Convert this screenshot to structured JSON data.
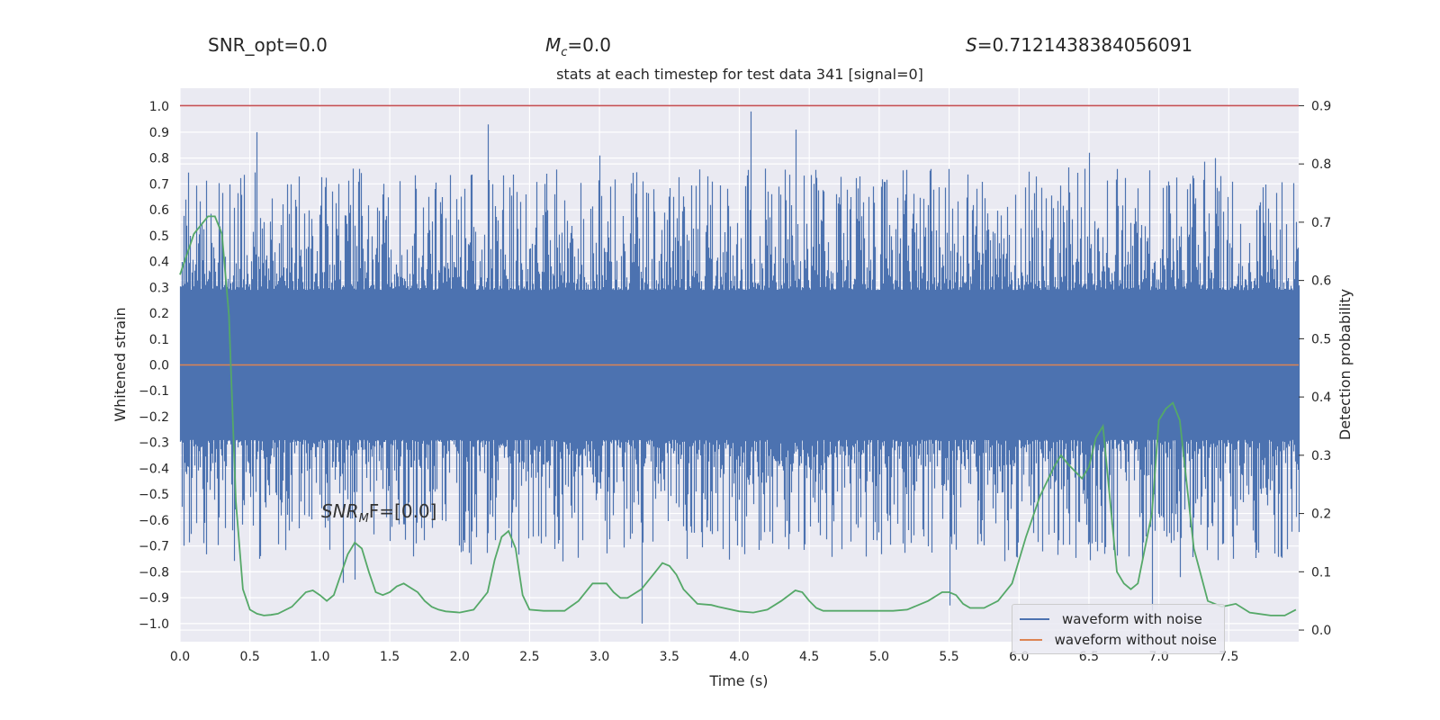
{
  "header": {
    "snr_opt": "SNR_opt=0.0",
    "mc_symbol": "M",
    "mc_sub": "c",
    "mc_value": "=0.0",
    "s_symbol": "S",
    "s_value": "=0.7121438384056091"
  },
  "annotation": {
    "snr_symbol": "SNR",
    "snr_sub": "M",
    "snr_rest": "F=[0.0]"
  },
  "colors": {
    "plot_bg": "#eaeaf2",
    "grid": "#ffffff",
    "noise": "#4c72b0",
    "clean": "#dd8452",
    "prob": "#55a868",
    "threshold": "#c44e52"
  },
  "chart_data": {
    "type": "line",
    "title": "stats at each timestep for test data 341 [signal=0]",
    "xlabel": "Time (s)",
    "ylabel": "Whitened strain",
    "y2label": "Detection probability",
    "xlim": [
      0.0,
      8.0
    ],
    "ylim": [
      -1.07,
      1.07
    ],
    "y2lim": [
      -0.02,
      0.93
    ],
    "x_ticks": [
      "0.0",
      "0.5",
      "1.0",
      "1.5",
      "2.0",
      "2.5",
      "3.0",
      "3.5",
      "4.0",
      "4.5",
      "5.0",
      "5.5",
      "6.0",
      "6.5",
      "7.0",
      "7.5"
    ],
    "y_ticks": [
      "1.0",
      "0.9",
      "0.8",
      "0.7",
      "0.6",
      "0.5",
      "0.4",
      "0.3",
      "0.2",
      "0.1",
      "0.0",
      "−0.1",
      "−0.2",
      "−0.3",
      "−0.4",
      "−0.5",
      "−0.6",
      "−0.7",
      "−0.8",
      "−0.9",
      "−1.0"
    ],
    "y2_ticks": [
      "0.9",
      "0.8",
      "0.7",
      "0.6",
      "0.5",
      "0.4",
      "0.3",
      "0.2",
      "0.1",
      "0.0"
    ],
    "threshold": 0.9,
    "grid": true,
    "legend_position": "lower-right",
    "series": [
      {
        "name": "waveform with noise",
        "kind": "noise",
        "envelope_peaks_upper": [
          [
            0.55,
            0.9
          ],
          [
            2.2,
            0.93
          ],
          [
            3.0,
            0.81
          ],
          [
            4.08,
            0.98
          ],
          [
            4.4,
            0.91
          ],
          [
            6.5,
            0.82
          ],
          [
            7.4,
            0.8
          ]
        ],
        "envelope_peaks_lower": [
          [
            1.25,
            -0.83
          ],
          [
            3.3,
            -1.0
          ],
          [
            5.5,
            -0.93
          ],
          [
            6.95,
            -0.95
          ],
          [
            7.15,
            -0.82
          ]
        ]
      },
      {
        "name": "waveform without noise",
        "kind": "flat",
        "value": 0.0
      },
      {
        "kind": "probability",
        "axis": "right",
        "x": [
          0.0,
          0.1,
          0.2,
          0.25,
          0.3,
          0.35,
          0.4,
          0.45,
          0.5,
          0.55,
          0.6,
          0.65,
          0.7,
          0.8,
          0.9,
          0.95,
          1.0,
          1.05,
          1.1,
          1.2,
          1.25,
          1.3,
          1.35,
          1.4,
          1.45,
          1.5,
          1.55,
          1.6,
          1.7,
          1.75,
          1.8,
          1.85,
          1.9,
          2.0,
          2.1,
          2.2,
          2.25,
          2.3,
          2.35,
          2.4,
          2.45,
          2.5,
          2.6,
          2.65,
          2.75,
          2.85,
          2.95,
          3.05,
          3.1,
          3.15,
          3.2,
          3.3,
          3.4,
          3.45,
          3.5,
          3.55,
          3.6,
          3.7,
          3.8,
          3.85,
          4.0,
          4.1,
          4.2,
          4.3,
          4.4,
          4.45,
          4.5,
          4.55,
          4.6,
          4.7,
          4.8,
          5.0,
          5.1,
          5.2,
          5.35,
          5.45,
          5.5,
          5.55,
          5.6,
          5.65,
          5.75,
          5.85,
          5.95,
          6.05,
          6.15,
          6.25,
          6.3,
          6.35,
          6.45,
          6.5,
          6.55,
          6.6,
          6.7,
          6.75,
          6.8,
          6.85,
          6.95,
          7.0,
          7.05,
          7.1,
          7.15,
          7.25,
          7.35,
          7.45,
          7.55,
          7.65,
          7.8,
          7.9,
          7.98
        ],
        "y": [
          0.61,
          0.68,
          0.71,
          0.71,
          0.68,
          0.54,
          0.22,
          0.07,
          0.035,
          0.028,
          0.025,
          0.026,
          0.028,
          0.04,
          0.065,
          0.068,
          0.06,
          0.05,
          0.06,
          0.13,
          0.15,
          0.14,
          0.1,
          0.065,
          0.06,
          0.065,
          0.075,
          0.08,
          0.065,
          0.05,
          0.04,
          0.035,
          0.032,
          0.03,
          0.035,
          0.065,
          0.12,
          0.16,
          0.17,
          0.14,
          0.06,
          0.035,
          0.033,
          0.033,
          0.033,
          0.05,
          0.08,
          0.08,
          0.065,
          0.055,
          0.055,
          0.07,
          0.1,
          0.115,
          0.11,
          0.095,
          0.07,
          0.045,
          0.043,
          0.04,
          0.032,
          0.03,
          0.035,
          0.05,
          0.068,
          0.065,
          0.05,
          0.038,
          0.033,
          0.033,
          0.033,
          0.033,
          0.033,
          0.035,
          0.05,
          0.065,
          0.065,
          0.06,
          0.045,
          0.038,
          0.038,
          0.05,
          0.08,
          0.16,
          0.23,
          0.28,
          0.3,
          0.285,
          0.26,
          0.28,
          0.33,
          0.35,
          0.1,
          0.08,
          0.07,
          0.08,
          0.2,
          0.36,
          0.38,
          0.39,
          0.36,
          0.14,
          0.05,
          0.04,
          0.045,
          0.03,
          0.025,
          0.025,
          0.035
        ]
      }
    ]
  }
}
